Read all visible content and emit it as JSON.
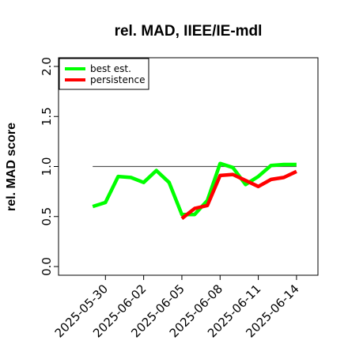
{
  "chart_data": {
    "type": "line",
    "title": "rel. MAD, IIEE/IE-mdl",
    "xlabel": "",
    "ylabel": "rel. MAD score",
    "ylim": [
      0,
      2.0
    ],
    "y_ticks": [
      "0.0",
      "0.5",
      "1.0",
      "1.5",
      "2.0"
    ],
    "x_ticks": [
      "2025-05-30",
      "2025-06-02",
      "2025-06-05",
      "2025-06-08",
      "2025-06-11",
      "2025-06-14"
    ],
    "x_range": [
      "2025-05-27",
      "2025-06-15"
    ],
    "reference_line": 1.0,
    "legend_position": "top-left",
    "grid": false,
    "series": [
      {
        "name": "best est.",
        "color": "#00ff00",
        "x": [
          "2025-05-29",
          "2025-05-30",
          "2025-05-31",
          "2025-06-01",
          "2025-06-02",
          "2025-06-03",
          "2025-06-04",
          "2025-06-05",
          "2025-06-06",
          "2025-06-07",
          "2025-06-08",
          "2025-06-09",
          "2025-06-10",
          "2025-06-11",
          "2025-06-12",
          "2025-06-13",
          "2025-06-14"
        ],
        "values": [
          0.6,
          0.64,
          0.9,
          0.89,
          0.84,
          0.96,
          0.84,
          0.52,
          0.52,
          0.66,
          1.03,
          0.99,
          0.82,
          0.9,
          1.01,
          1.02,
          1.02
        ]
      },
      {
        "name": "persistence",
        "color": "#ff0000",
        "x": [
          "2025-06-05",
          "2025-06-06",
          "2025-06-07",
          "2025-06-08",
          "2025-06-09",
          "2025-06-10",
          "2025-06-11",
          "2025-06-12",
          "2025-06-13",
          "2025-06-14"
        ],
        "values": [
          0.48,
          0.58,
          0.61,
          0.91,
          0.92,
          0.86,
          0.8,
          0.87,
          0.89,
          0.95
        ]
      }
    ]
  }
}
